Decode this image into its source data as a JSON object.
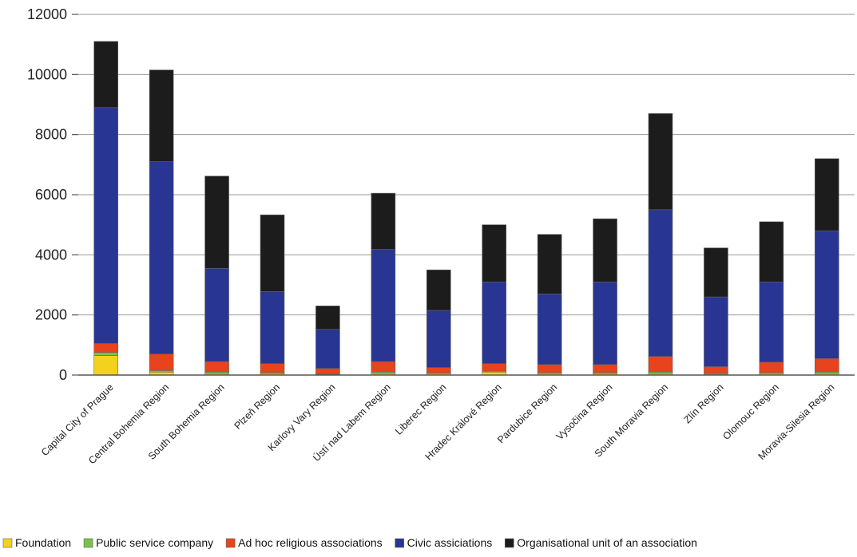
{
  "chart_data": {
    "type": "bar",
    "stacked": true,
    "ylim": [
      0,
      12000
    ],
    "yticks": [
      0,
      2000,
      4000,
      6000,
      8000,
      10000,
      12000
    ],
    "grid": true,
    "legend_position": "bottom",
    "categories": [
      "Capital City of Prague",
      "Central Bohemia Region",
      "South Bohemia Region",
      "Plzeň Region",
      "Karlovy Vary Region",
      "Ústí nad Labem Region",
      "Liberec Region",
      "Hradec Králové Region",
      "Pardubice Region",
      "Vysočina Region",
      "South Moravia Region",
      "Zlín Region",
      "Olomouc Region",
      "Moravia-Silesia Region"
    ],
    "series": [
      {
        "name": "Foundation",
        "color": "#f2d21c",
        "values": [
          650,
          100,
          50,
          50,
          20,
          50,
          50,
          100,
          50,
          50,
          50,
          30,
          50,
          50
        ]
      },
      {
        "name": "Public service company",
        "color": "#7cc04c",
        "values": [
          100,
          50,
          50,
          30,
          20,
          50,
          20,
          30,
          30,
          30,
          50,
          30,
          30,
          50
        ]
      },
      {
        "name": "Ad hoc religious associations",
        "color": "#e8431c",
        "values": [
          300,
          550,
          350,
          300,
          180,
          350,
          180,
          250,
          270,
          270,
          520,
          220,
          350,
          450
        ]
      },
      {
        "name": "Civic assiciations",
        "color": "#283593",
        "values": [
          7850,
          6400,
          3100,
          2400,
          1300,
          3730,
          1900,
          2720,
          2350,
          2750,
          4880,
          2320,
          2670,
          4250
        ]
      },
      {
        "name": "Organisational unit of an association",
        "color": "#1c1c1c",
        "values": [
          2200,
          3050,
          3070,
          2550,
          780,
          1870,
          1350,
          1900,
          1980,
          2100,
          3200,
          1630,
          2000,
          2400
        ]
      }
    ]
  }
}
